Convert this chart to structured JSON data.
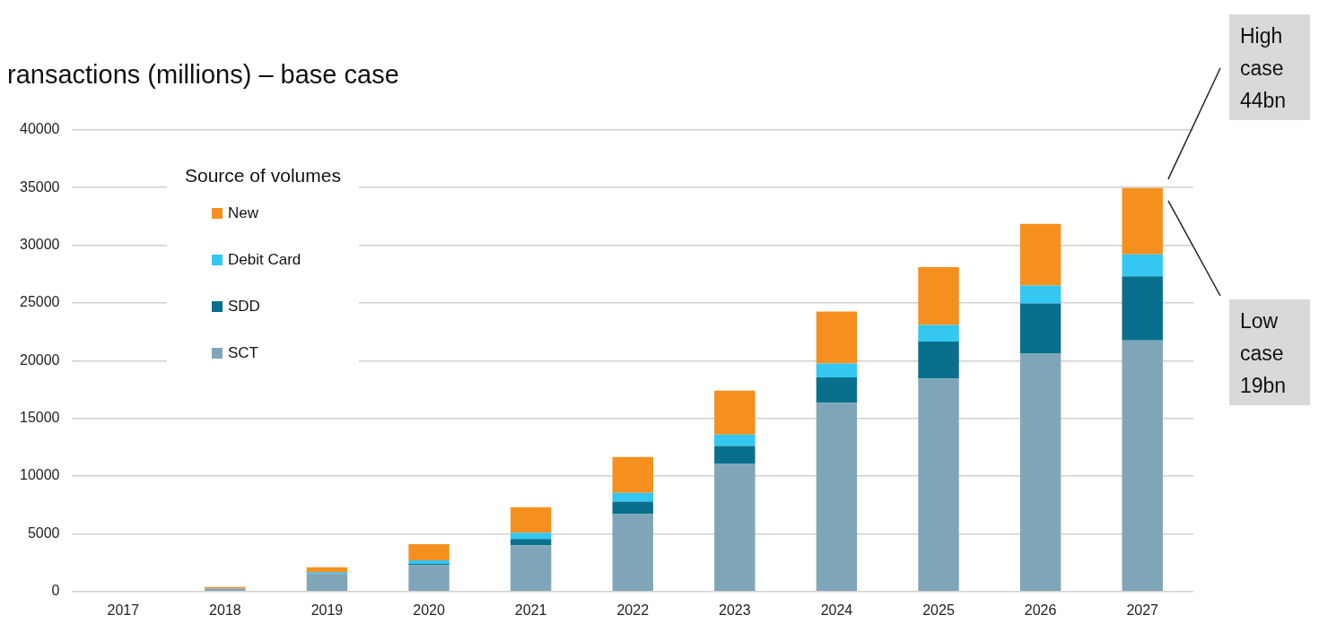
{
  "chart_data": {
    "type": "bar",
    "title": "ransactions (millions) – base case",
    "categories": [
      "2017",
      "2018",
      "2019",
      "2020",
      "2021",
      "2022",
      "2023",
      "2024",
      "2025",
      "2026",
      "2027"
    ],
    "stacked": true,
    "series": [
      {
        "name": "SCT",
        "color": "#7fa6b8",
        "values": [
          0,
          250,
          1600,
          2300,
          4000,
          6700,
          11050,
          16350,
          18450,
          20600,
          21750
        ]
      },
      {
        "name": "SDD",
        "color": "#08708c",
        "values": [
          0,
          0,
          null,
          100,
          550,
          1100,
          1550,
          2200,
          3200,
          4350,
          5550
        ]
      },
      {
        "name": "Debit Card",
        "color": "#33c7f2",
        "values": [
          0,
          0,
          100,
          300,
          550,
          750,
          1000,
          1200,
          1450,
          1550,
          1900
        ]
      },
      {
        "name": "New",
        "color": "#f5901e",
        "values": [
          0,
          150,
          400,
          1400,
          2200,
          3100,
          3800,
          4500,
          5000,
          5350,
          5750
        ]
      }
    ],
    "ylim": [
      0,
      40000
    ],
    "yticks": [
      0,
      5000,
      10000,
      15000,
      20000,
      25000,
      30000,
      35000,
      40000
    ],
    "grid": "y",
    "legend": "top left",
    "legend_title": "Source of volumes",
    "annotations": [
      "High case 44bn",
      "Low case 19bn"
    ]
  }
}
